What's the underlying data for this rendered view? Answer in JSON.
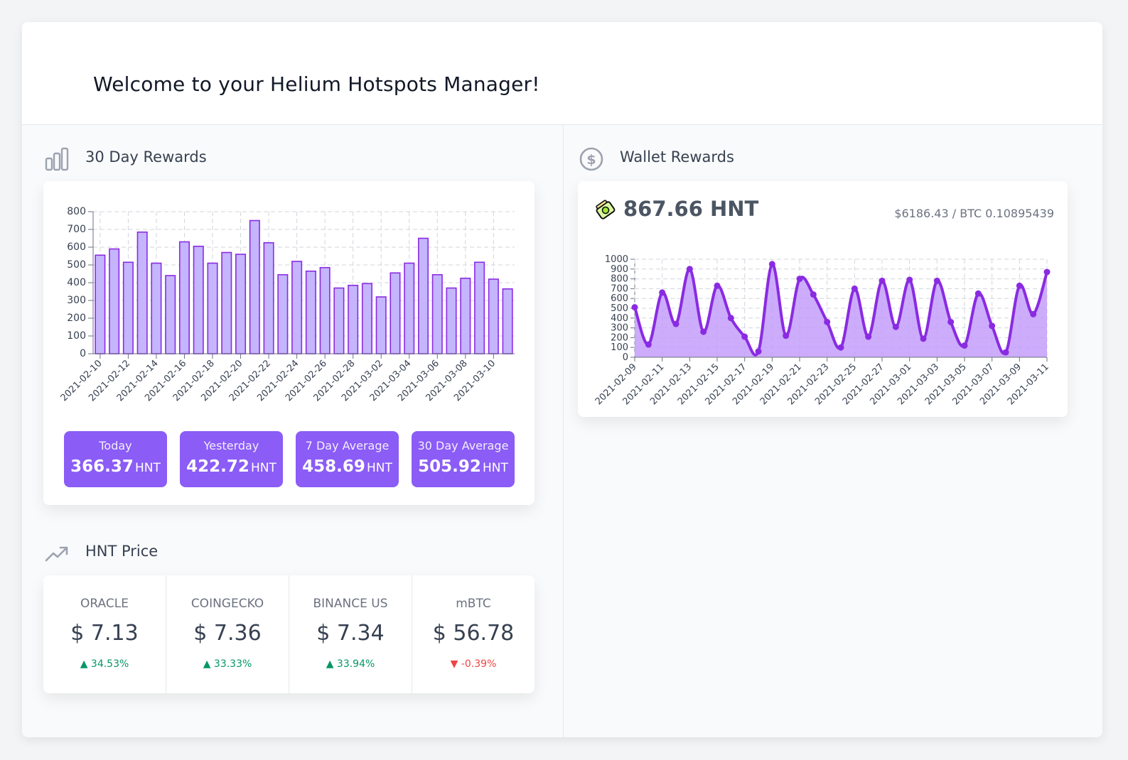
{
  "header": {
    "title": "Welcome to your Helium Hotspots Manager!"
  },
  "rewards_section": {
    "title": "30 Day Rewards",
    "icon": "bar-chart-icon",
    "stats": [
      {
        "label": "Today",
        "value": "366.37",
        "unit": "HNT"
      },
      {
        "label": "Yesterday",
        "value": "422.72",
        "unit": "HNT"
      },
      {
        "label": "7 Day Average",
        "value": "458.69",
        "unit": "HNT"
      },
      {
        "label": "30 Day Average",
        "value": "505.92",
        "unit": "HNT"
      }
    ]
  },
  "wallet_section": {
    "title": "Wallet Rewards",
    "icon": "dollar-circle-icon",
    "balance": "867.66 HNT",
    "conversion": "$6186.43 / BTC 0.10895439",
    "token_icon": "helium-token-icon"
  },
  "price_section": {
    "title": "HNT Price",
    "icon": "trending-up-icon",
    "prices": [
      {
        "label": "ORACLE",
        "value": "$ 7.13",
        "change": "34.53%",
        "direction": "up"
      },
      {
        "label": "COINGECKO",
        "value": "$ 7.36",
        "change": "33.33%",
        "direction": "up"
      },
      {
        "label": "BINANCE US",
        "value": "$ 7.34",
        "change": "33.94%",
        "direction": "up"
      },
      {
        "label": "mBTC",
        "value": "$ 56.78",
        "change": "-0.39%",
        "direction": "down"
      }
    ]
  },
  "colors": {
    "accent": "#8b5cf6",
    "bar_fill": "#c4b5fd",
    "bar_stroke": "#8b2be2",
    "line": "#8a2be2",
    "area": "#c39dfa",
    "up": "#059669",
    "down": "#ef4444"
  },
  "chart_data": [
    {
      "type": "bar",
      "categories": [
        "2021-02-10",
        "2021-02-11",
        "2021-02-12",
        "2021-02-13",
        "2021-02-14",
        "2021-02-15",
        "2021-02-16",
        "2021-02-17",
        "2021-02-18",
        "2021-02-19",
        "2021-02-20",
        "2021-02-21",
        "2021-02-22",
        "2021-02-23",
        "2021-02-24",
        "2021-02-25",
        "2021-02-26",
        "2021-02-27",
        "2021-02-28",
        "2021-03-01",
        "2021-03-02",
        "2021-03-03",
        "2021-03-04",
        "2021-03-05",
        "2021-03-06",
        "2021-03-07",
        "2021-03-08",
        "2021-03-09",
        "2021-03-10",
        "2021-03-11"
      ],
      "tick_labels": [
        "2021-02-10",
        "2021-02-12",
        "2021-02-14",
        "2021-02-16",
        "2021-02-18",
        "2021-02-20",
        "2021-02-22",
        "2021-02-24",
        "2021-02-26",
        "2021-02-28",
        "2021-03-02",
        "2021-03-04",
        "2021-03-06",
        "2021-03-08",
        "2021-03-10"
      ],
      "values": [
        555,
        590,
        515,
        685,
        510,
        440,
        630,
        605,
        510,
        570,
        560,
        750,
        625,
        445,
        520,
        465,
        485,
        370,
        385,
        395,
        320,
        455,
        510,
        650,
        445,
        370,
        425,
        515,
        420,
        365
      ],
      "ylim": [
        0,
        800
      ],
      "yticks": [
        0,
        100,
        200,
        300,
        400,
        500,
        600,
        700,
        800
      ],
      "grid": true
    },
    {
      "type": "area",
      "x": [
        "2021-02-09",
        "2021-02-10",
        "2021-02-11",
        "2021-02-12",
        "2021-02-13",
        "2021-02-14",
        "2021-02-15",
        "2021-02-16",
        "2021-02-17",
        "2021-02-18",
        "2021-02-19",
        "2021-02-20",
        "2021-02-21",
        "2021-02-22",
        "2021-02-23",
        "2021-02-24",
        "2021-02-25",
        "2021-02-26",
        "2021-02-27",
        "2021-02-28",
        "2021-03-01",
        "2021-03-02",
        "2021-03-03",
        "2021-03-04",
        "2021-03-05",
        "2021-03-06",
        "2021-03-07",
        "2021-03-08",
        "2021-03-09",
        "2021-03-10",
        "2021-03-11"
      ],
      "tick_labels": [
        "2021-02-09",
        "2021-02-11",
        "2021-02-13",
        "2021-02-15",
        "2021-02-17",
        "2021-02-19",
        "2021-02-21",
        "2021-02-23",
        "2021-02-25",
        "2021-02-27",
        "2021-03-01",
        "2021-03-03",
        "2021-03-05",
        "2021-03-07",
        "2021-03-09",
        "2021-03-11"
      ],
      "y": [
        510,
        130,
        660,
        340,
        900,
        260,
        730,
        400,
        210,
        60,
        950,
        220,
        800,
        640,
        360,
        100,
        700,
        210,
        780,
        310,
        790,
        190,
        780,
        360,
        120,
        650,
        320,
        50,
        730,
        440,
        870
      ],
      "ylim": [
        0,
        1000
      ],
      "yticks": [
        0,
        100,
        200,
        300,
        400,
        500,
        600,
        700,
        800,
        900,
        1000
      ],
      "grid": true
    }
  ]
}
